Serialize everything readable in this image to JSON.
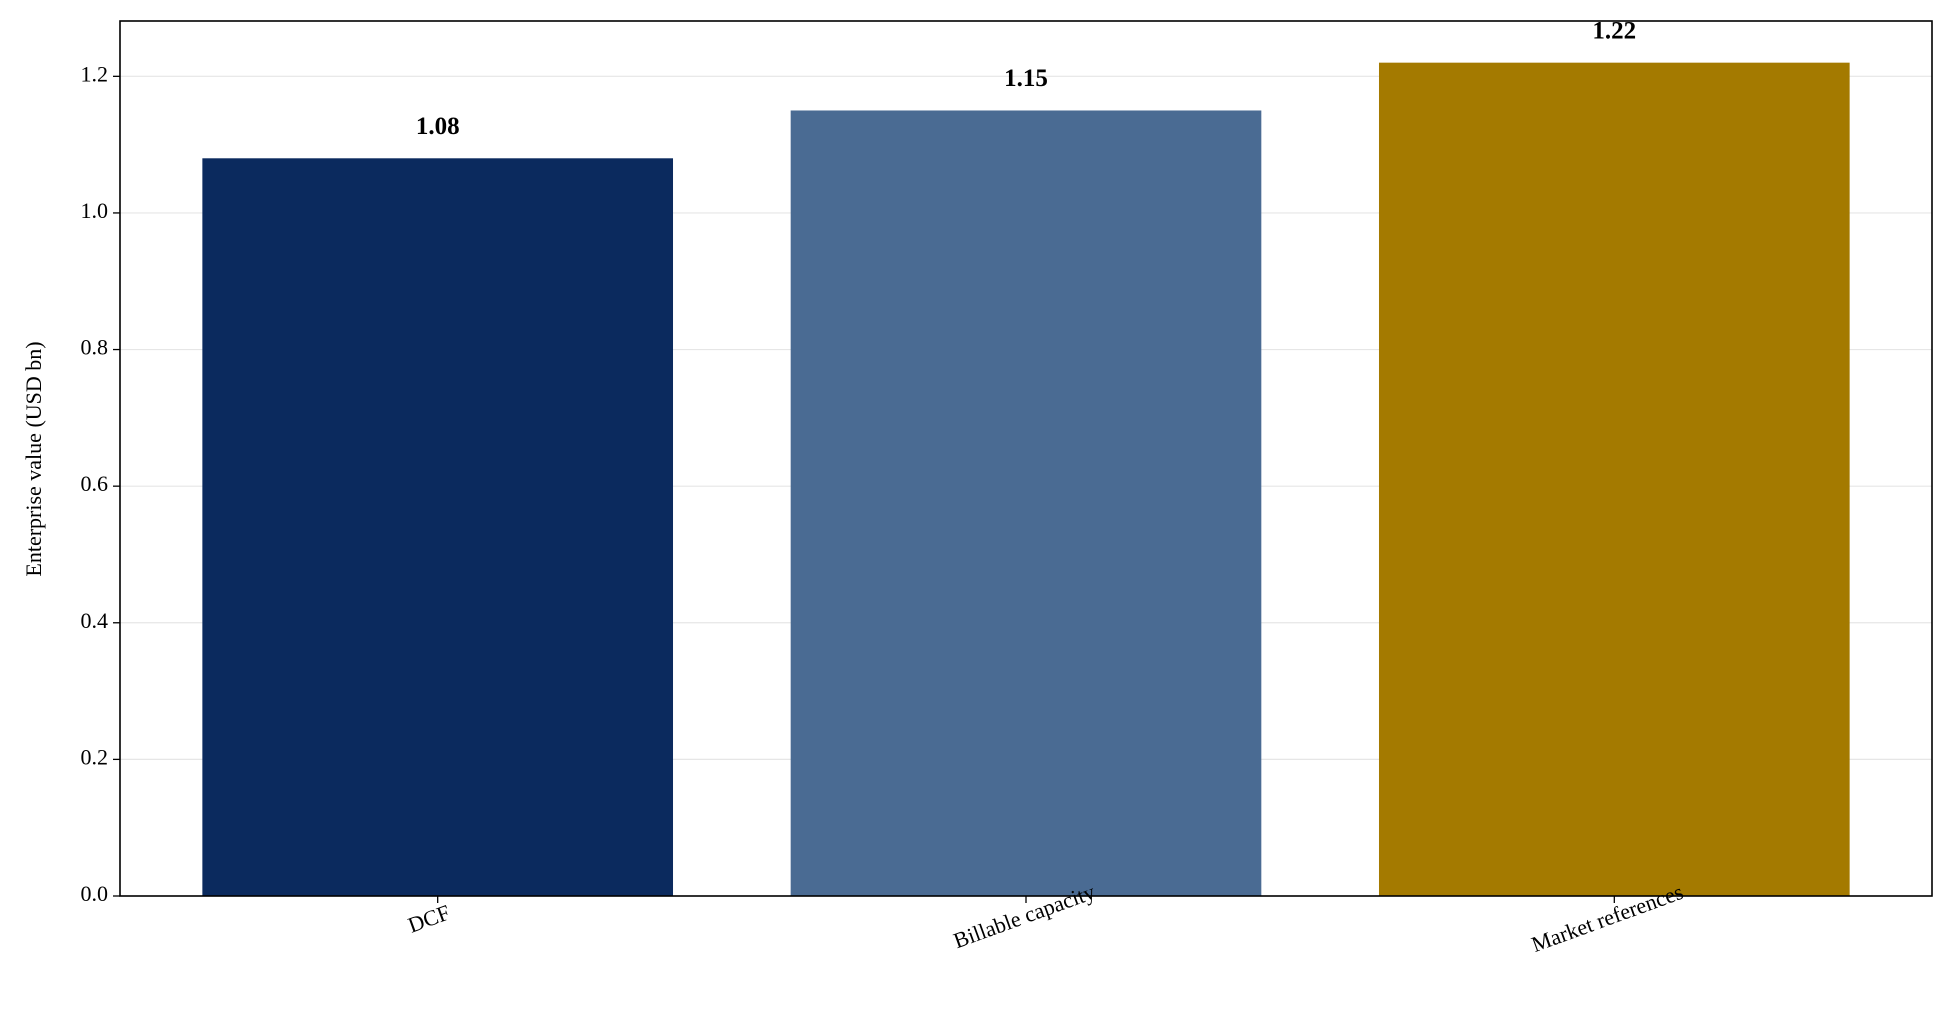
{
  "chart_data": {
    "type": "bar",
    "y_label": "Enterprise value (USD bn)",
    "categories": [
      "DCF",
      "Billable capacity",
      "Market references"
    ],
    "values": [
      1.08,
      1.15,
      1.22
    ],
    "colors": [
      "#0b2a5e",
      "#4a6b93",
      "#a47a00"
    ],
    "ylim": [
      0,
      1.281
    ],
    "yticks": [
      {
        "value": 0,
        "label": "0.0"
      },
      0.2,
      0.4,
      0.6,
      0.8,
      {
        "value": 1,
        "label": "1.0"
      },
      1.2
    ],
    "grid": true
  }
}
